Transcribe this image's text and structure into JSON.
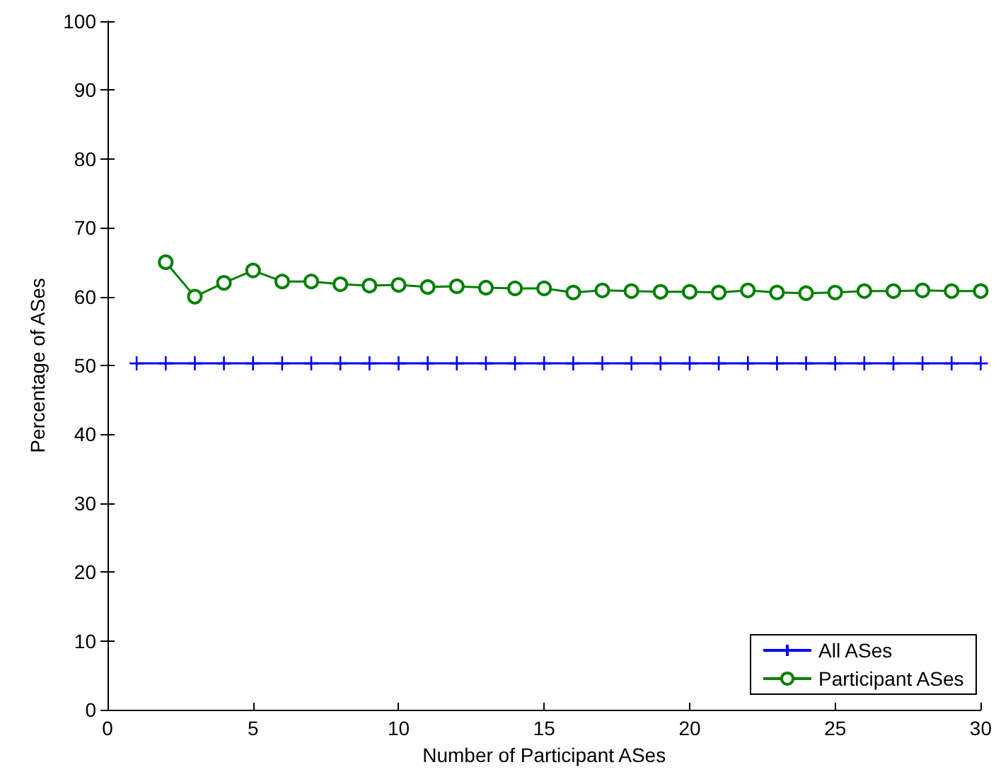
{
  "chart_data": {
    "type": "line",
    "xlabel": "Number of Participant ASes",
    "ylabel": "Percentage of ASes",
    "xlim": [
      0,
      30
    ],
    "xticks": [
      0,
      5,
      10,
      15,
      20,
      25,
      30
    ],
    "ylim": [
      0,
      100
    ],
    "yticks": [
      0,
      10,
      20,
      30,
      40,
      50,
      60,
      70,
      80,
      90,
      100
    ],
    "grid": false,
    "legend": "bottom right",
    "series": [
      {
        "name": "All ASes",
        "color": "#0000ff",
        "marker": "cross",
        "x": [
          1,
          2,
          3,
          4,
          5,
          6,
          7,
          8,
          9,
          10,
          11,
          12,
          13,
          14,
          15,
          16,
          17,
          18,
          19,
          20,
          21,
          22,
          23,
          24,
          25,
          26,
          27,
          28,
          29,
          30
        ],
        "values": [
          50.3,
          50.3,
          50.3,
          50.3,
          50.3,
          50.3,
          50.3,
          50.3,
          50.3,
          50.3,
          50.3,
          50.3,
          50.3,
          50.3,
          50.3,
          50.3,
          50.3,
          50.3,
          50.3,
          50.3,
          50.3,
          50.3,
          50.3,
          50.3,
          50.3,
          50.3,
          50.3,
          50.3,
          50.3,
          50.3
        ]
      },
      {
        "name": "Participant ASes",
        "color": "#008000",
        "marker": "circle",
        "x": [
          2,
          3,
          4,
          5,
          6,
          7,
          8,
          9,
          10,
          11,
          12,
          13,
          14,
          15,
          16,
          17,
          18,
          19,
          20,
          21,
          22,
          23,
          24,
          25,
          26,
          27,
          28,
          29,
          30
        ],
        "values": [
          65,
          60,
          62,
          63.8,
          62.2,
          62.2,
          61.8,
          61.6,
          61.7,
          61.4,
          61.5,
          61.3,
          61.2,
          61.2,
          60.6,
          60.9,
          60.8,
          60.7,
          60.7,
          60.6,
          60.9,
          60.6,
          60.5,
          60.6,
          60.8,
          60.8,
          60.9,
          60.8,
          60.8
        ]
      }
    ]
  }
}
